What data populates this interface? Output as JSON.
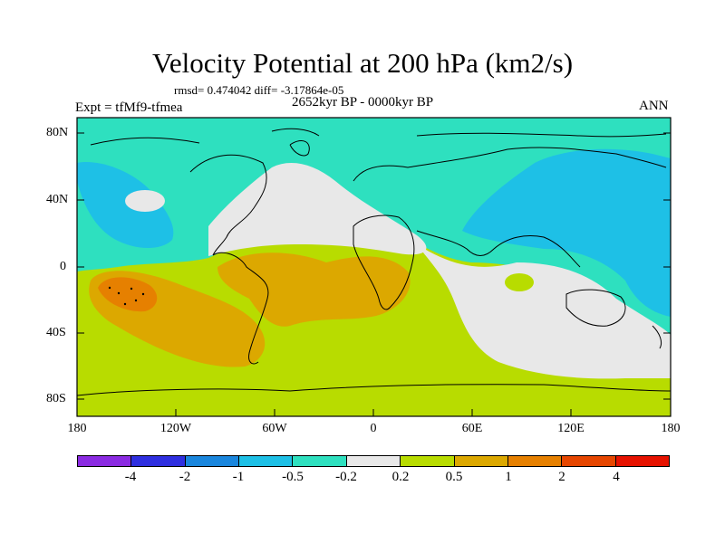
{
  "title": "Velocity Potential at 200 hPa (km2/s)",
  "rmsd_line": "rmsd= 0.474042 diff= -3.17864e-05",
  "period": "2652kyr BP - 0000kyr BP",
  "experiment": "Expt = tfMf9-tfmea",
  "season": "ANN",
  "y_ticks": [
    "80N",
    "40N",
    "0",
    "40S",
    "80S"
  ],
  "x_ticks": [
    "180",
    "120W",
    "60W",
    "0",
    "60E",
    "120E",
    "180"
  ],
  "colorbar": {
    "labels": [
      "-4",
      "-2",
      "-1",
      "-0.5",
      "-0.2",
      "0.2",
      "0.5",
      "1",
      "2",
      "4"
    ],
    "colors": [
      "#8b2be2",
      "#2f2fe0",
      "#1a86dd",
      "#1ec0e6",
      "#2ee0bf",
      "#e8e8e8",
      "#b8dc00",
      "#dca800",
      "#e68000",
      "#e64600",
      "#e61200"
    ]
  },
  "icons": [
    "coastline-outline"
  ],
  "map_colors": {
    "ocean_land_base": "#b8dc00",
    "light_negative": "#2ee0bf",
    "moderate_negative": "#1ec0e6",
    "near_zero": "#e8e8e8",
    "light_positive": "#b8dc00",
    "moderate_positive": "#dca800",
    "strong_positive": "#e68000",
    "coastline": "#000000"
  }
}
